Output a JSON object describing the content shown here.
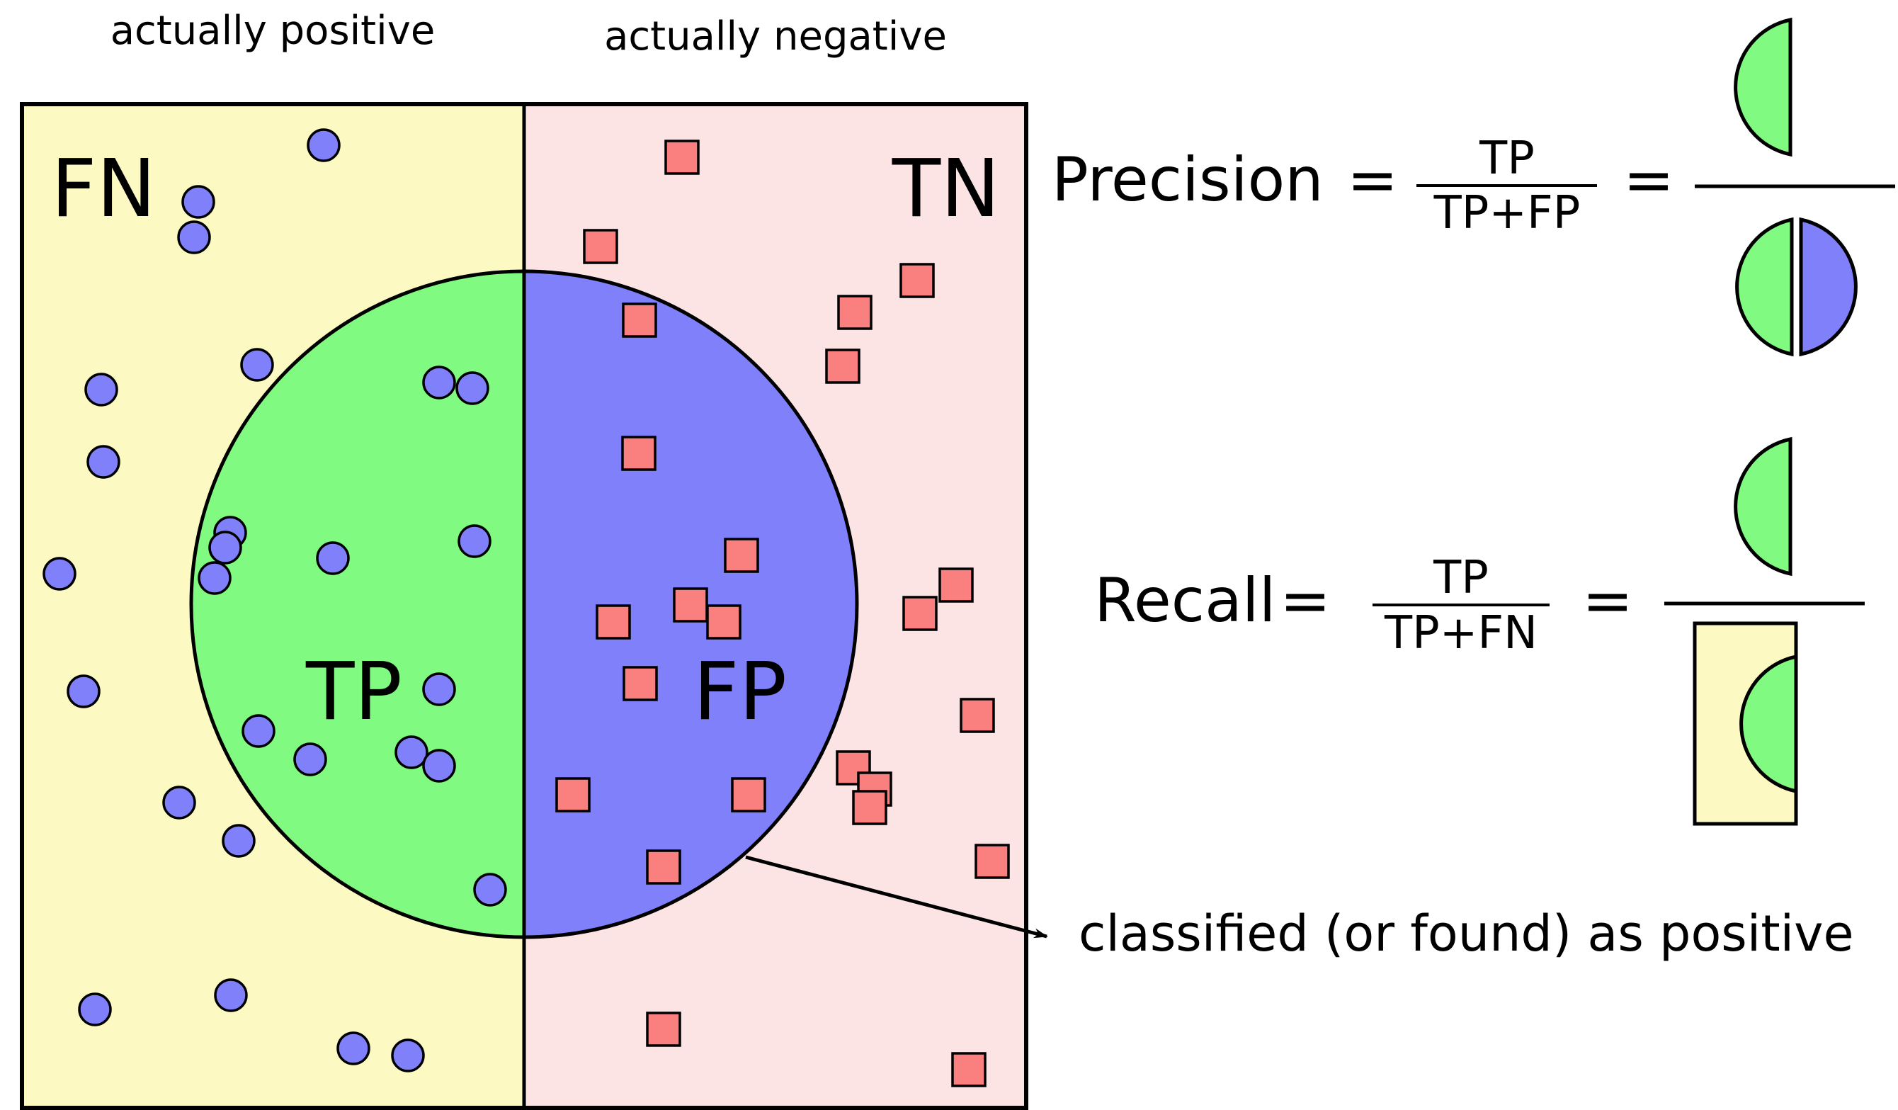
{
  "headers": {
    "positive": "actually positive",
    "negative": "actually negative"
  },
  "quadrants": {
    "fn": "FN",
    "tn": "TN",
    "tp": "TP",
    "fp": "FP"
  },
  "annotation": {
    "classified": "classified (or found) as positive"
  },
  "precision": {
    "label": "Precision",
    "equals": "=",
    "numerator": "TP",
    "denominator": "TP+FP",
    "equals2": "="
  },
  "recall": {
    "label": "Recall",
    "equals": "=",
    "numerator": "TP",
    "denominator": "TP+FN",
    "equals2": "="
  },
  "colors": {
    "positive_region": "#fdf9c3",
    "negative_region": "#fde4e4",
    "true_positive": "#80fa80",
    "false_positive": "#8080fa",
    "positive_marker": "#8080fa",
    "negative_marker": "#fa8080",
    "stroke": "#000000"
  },
  "markers": {
    "positive_shape": "circle",
    "negative_shape": "square"
  }
}
